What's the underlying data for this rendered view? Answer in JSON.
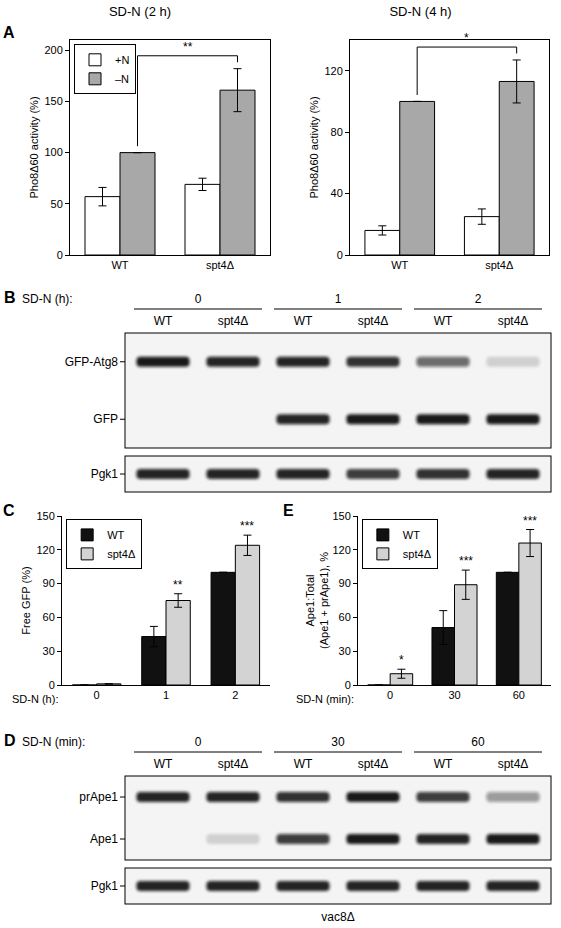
{
  "chart_data": [
    {
      "panel": "A",
      "type": "bar",
      "title": "SD-N (2 h)",
      "ylabel": "Pho8Δ60 activity (%)",
      "categories": [
        "WT",
        "spt4Δ"
      ],
      "series": [
        {
          "name": "+N",
          "color": "#ffffff",
          "values": [
            57,
            69
          ],
          "errors": [
            9,
            6
          ]
        },
        {
          "name": "–N",
          "color": "#a8a8a8",
          "values": [
            100,
            161
          ],
          "errors": [
            null,
            21
          ]
        }
      ],
      "ylim": [
        0,
        210
      ],
      "yticks": [
        0,
        50,
        100,
        150,
        200
      ],
      "grid": false,
      "legend": "upper left",
      "annotations": [
        {
          "text": "**",
          "between": [
            "WT",
            "spt4Δ"
          ],
          "series": "–N"
        }
      ]
    },
    {
      "type": "bar",
      "title": "SD-N (4 h)",
      "ylabel": "Pho8Δ60 activity (%)",
      "categories": [
        "WT",
        "spt4Δ"
      ],
      "series": [
        {
          "name": "+N",
          "color": "#ffffff",
          "values": [
            16,
            25
          ],
          "errors": [
            3,
            5
          ]
        },
        {
          "name": "–N",
          "color": "#a8a8a8",
          "values": [
            100,
            113
          ],
          "errors": [
            null,
            14
          ]
        }
      ],
      "ylim": [
        0,
        140
      ],
      "yticks": [
        0,
        40,
        80,
        120
      ],
      "grid": false,
      "annotations": [
        {
          "text": "*",
          "between": [
            "WT",
            "spt4Δ"
          ],
          "series": "–N"
        }
      ]
    },
    {
      "panel": "C",
      "type": "bar",
      "xlabel": "SD-N (h):",
      "ylabel": "Free GFP (%)",
      "categories": [
        "0",
        "1",
        "2"
      ],
      "series": [
        {
          "name": "WT",
          "color": "#111111",
          "values": [
            0,
            43,
            100
          ],
          "errors": [
            null,
            9,
            null
          ]
        },
        {
          "name": "spt4Δ",
          "color": "#d3d3d3",
          "values": [
            1,
            75,
            124
          ],
          "errors": [
            null,
            6,
            9
          ],
          "significance": [
            null,
            "**",
            "***"
          ]
        }
      ],
      "ylim": [
        0,
        150
      ],
      "yticks": [
        0,
        30,
        60,
        90,
        120,
        150
      ],
      "grid": false,
      "legend": "upper left"
    },
    {
      "panel": "E",
      "type": "bar",
      "xlabel": "SD-N (min):",
      "ylabel": "Ape1:Total\n(Ape1 + prApe1), %",
      "categories": [
        "0",
        "30",
        "60"
      ],
      "series": [
        {
          "name": "WT",
          "color": "#111111",
          "values": [
            0,
            51,
            100
          ],
          "errors": [
            null,
            15,
            null
          ]
        },
        {
          "name": "spt4Δ",
          "color": "#d3d3d3",
          "values": [
            10,
            89,
            126
          ],
          "errors": [
            4,
            13,
            12
          ],
          "significance": [
            "*",
            "***",
            "***"
          ]
        }
      ],
      "ylim": [
        0,
        150
      ],
      "yticks": [
        0,
        30,
        60,
        90,
        120,
        150
      ],
      "grid": false,
      "legend": "upper left"
    }
  ],
  "blots": [
    {
      "panel": "B",
      "time_label": "SD-N (h):",
      "groups": [
        "0",
        "1",
        "2"
      ],
      "lanes": [
        "WT",
        "spt4Δ"
      ],
      "rows": [
        {
          "label": "GFP-Atg8",
          "bands": [
            0.95,
            0.9,
            0.9,
            0.85,
            0.6,
            0.15
          ]
        },
        {
          "label": "GFP",
          "bands": [
            0,
            0,
            0.9,
            0.95,
            0.95,
            0.95
          ]
        }
      ],
      "loading": {
        "label": "Pgk1",
        "bands": [
          0.9,
          0.9,
          0.9,
          0.8,
          0.85,
          0.9
        ]
      }
    },
    {
      "panel": "D",
      "time_label": "SD-N (min):",
      "groups": [
        "0",
        "30",
        "60"
      ],
      "lanes": [
        "WT",
        "spt4Δ"
      ],
      "rows": [
        {
          "label": "prApe1",
          "bands": [
            0.9,
            0.9,
            0.85,
            0.95,
            0.8,
            0.4
          ]
        },
        {
          "label": "Ape1",
          "bands": [
            0,
            0.15,
            0.8,
            0.95,
            0.9,
            0.95
          ]
        }
      ],
      "loading": {
        "label": "Pgk1",
        "bands": [
          0.9,
          0.9,
          0.9,
          0.9,
          0.9,
          0.9
        ]
      },
      "footer": "vac8Δ"
    }
  ]
}
